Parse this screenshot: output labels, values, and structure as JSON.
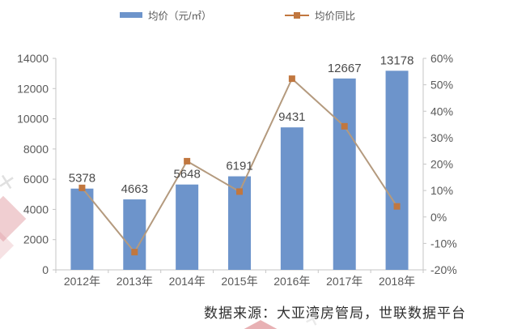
{
  "legend": {
    "price": {
      "label": "均价（元/㎡）",
      "color": "#6d94cb"
    },
    "yoy": {
      "label": "均价同比",
      "color": "#c1773f"
    }
  },
  "source_note": "数据来源：大亚湾房管局，世联数据平台",
  "chart_data": {
    "type": "bar",
    "subtype": "bar-line-combo",
    "title": "",
    "categories": [
      "2012年",
      "2013年",
      "2014年",
      "2015年",
      "2016年",
      "2017年",
      "2018年"
    ],
    "series": [
      {
        "name": "均价（元/㎡）",
        "type": "bar",
        "axis": "left",
        "color": "#6d94cb",
        "values": [
          5378,
          4663,
          5648,
          6191,
          9431,
          12667,
          13178
        ],
        "data_labels": [
          "5378",
          "4663",
          "5648",
          "6191",
          "9431",
          "12667",
          "13178"
        ]
      },
      {
        "name": "均价同比",
        "type": "line",
        "axis": "right",
        "line_color": "#b49a7e",
        "marker_color": "#c1773f",
        "values_pct": [
          11,
          -13.3,
          21.1,
          9.6,
          52.3,
          34.3,
          4
        ]
      }
    ],
    "left_axis": {
      "min": 0,
      "max": 14000,
      "step": 2000,
      "ticks": [
        "14000",
        "12000",
        "10000",
        "8000",
        "6000",
        "4000",
        "2000",
        "0"
      ]
    },
    "right_axis": {
      "min": -20,
      "max": 60,
      "step": 10,
      "ticks": [
        "60%",
        "50%",
        "40%",
        "30%",
        "20%",
        "10%",
        "0%",
        "-10%",
        "-20%"
      ]
    },
    "grid": false,
    "legend_position": "top",
    "axis_line_color": "#c6c6c6",
    "tick_label_color": "#595959",
    "data_label_color": "#4a4a4a"
  }
}
